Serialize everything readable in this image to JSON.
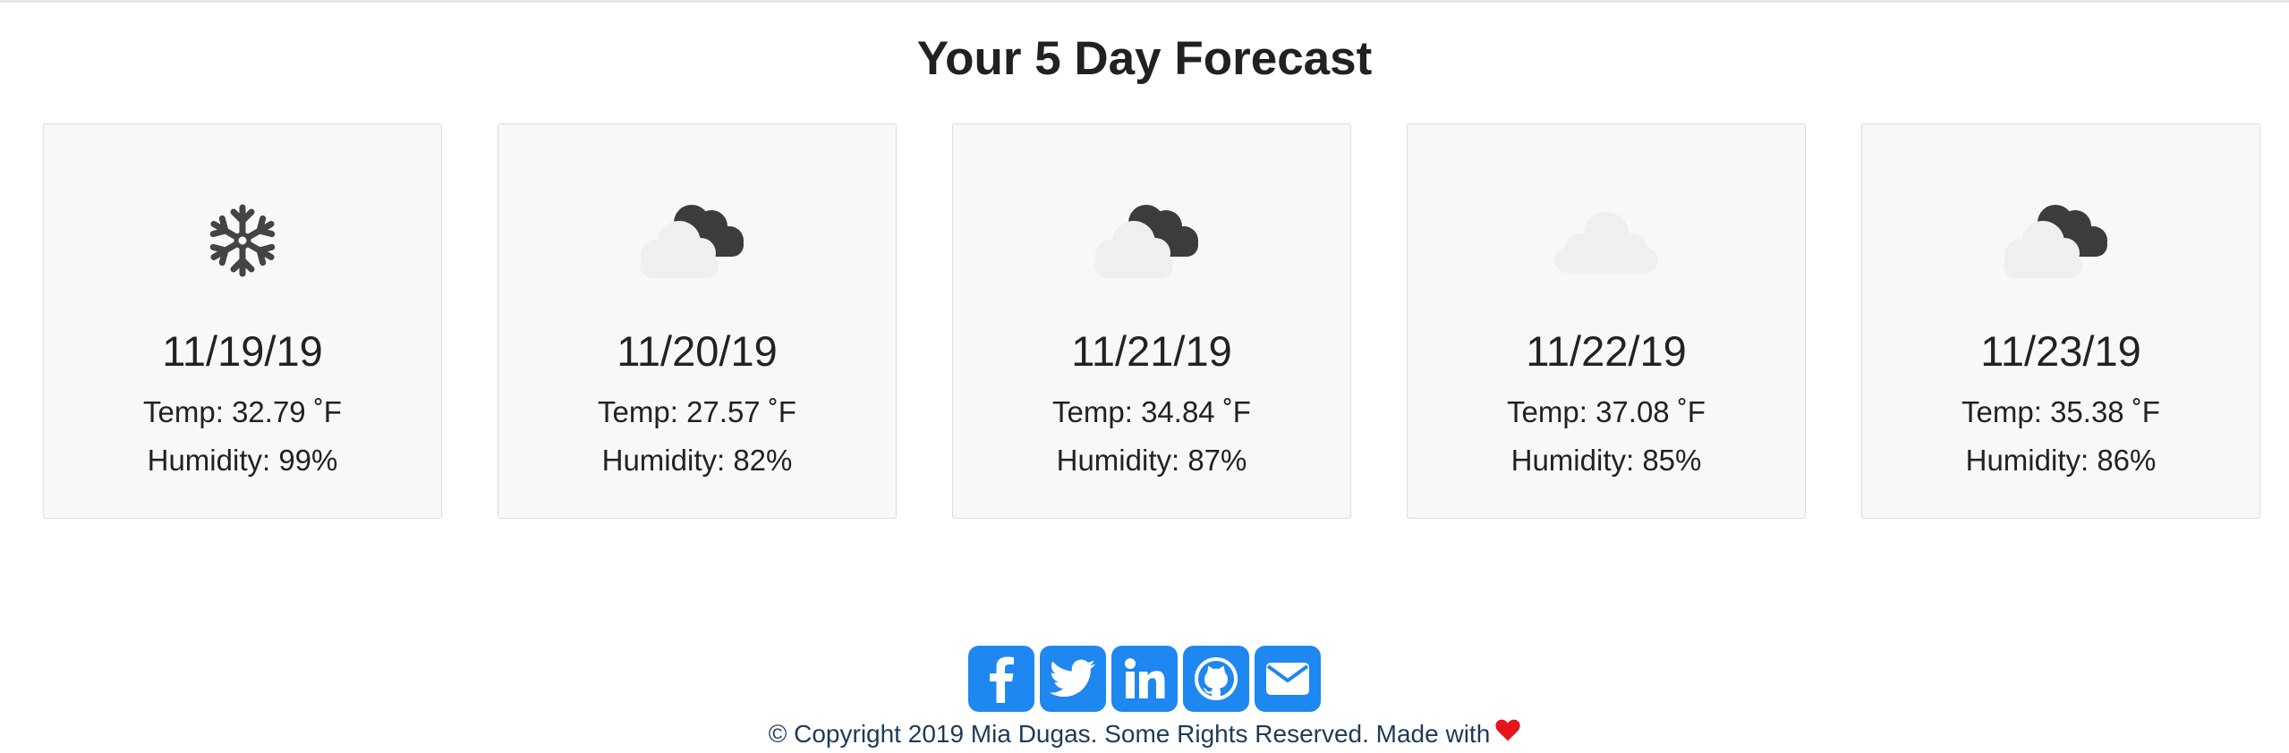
{
  "forecast": {
    "title": "Your 5 Day Forecast",
    "days": [
      {
        "date": "11/19/19",
        "temp": "Temp: 32.79 ˚F",
        "humidity": "Humidity: 99%",
        "icon": "snowflake-icon"
      },
      {
        "date": "11/20/19",
        "temp": "Temp: 27.57 ˚F",
        "humidity": "Humidity: 82%",
        "icon": "broken-clouds-icon"
      },
      {
        "date": "11/21/19",
        "temp": "Temp: 34.84 ˚F",
        "humidity": "Humidity: 87%",
        "icon": "broken-clouds-icon"
      },
      {
        "date": "11/22/19",
        "temp": "Temp: 37.08 ˚F",
        "humidity": "Humidity: 85%",
        "icon": "cloud-icon"
      },
      {
        "date": "11/23/19",
        "temp": "Temp: 35.38 ˚F",
        "humidity": "Humidity: 86%",
        "icon": "broken-clouds-icon"
      }
    ]
  },
  "social": {
    "links": [
      {
        "name": "facebook-icon"
      },
      {
        "name": "twitter-icon"
      },
      {
        "name": "linkedin-icon"
      },
      {
        "name": "github-icon"
      },
      {
        "name": "email-icon"
      }
    ]
  },
  "footer": {
    "text": "© Copyright 2019 Mia Dugas. Some Rights Reserved. Made with",
    "heart_icon": "heart-icon"
  },
  "colors": {
    "accent": "#1e87f0",
    "heart": "#e8141c",
    "card_bg": "#f8f8f8"
  }
}
